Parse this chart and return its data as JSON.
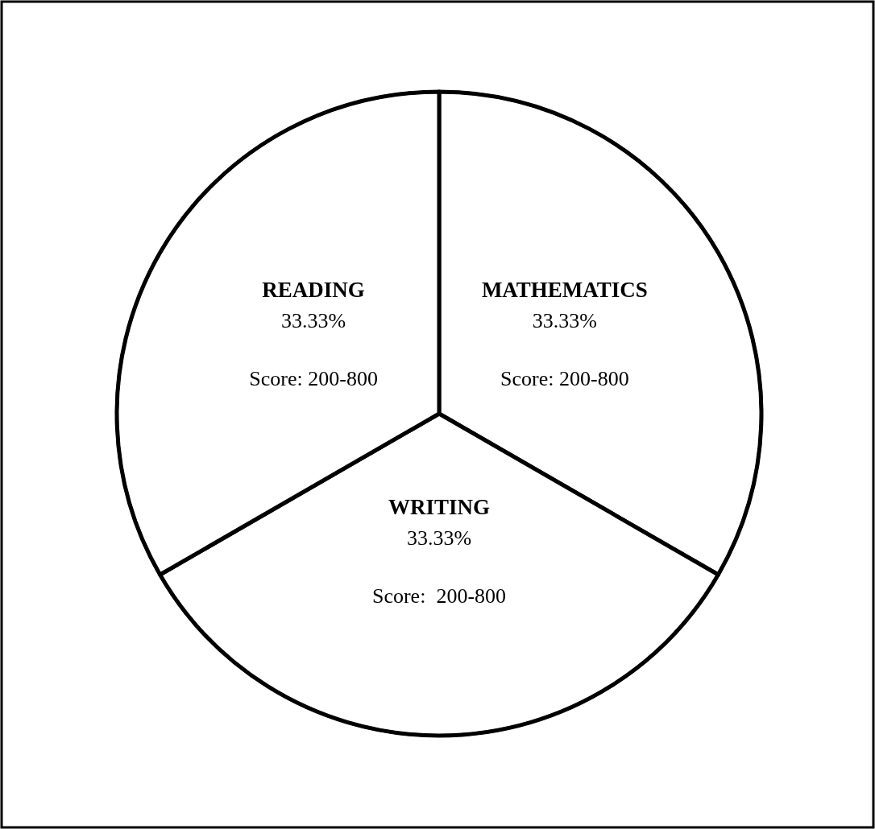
{
  "chart_data": {
    "type": "pie",
    "categories": [
      "MATHEMATICS",
      "WRITING",
      "READING"
    ],
    "values": [
      33.33,
      33.33,
      33.33
    ],
    "colors": [
      "#ffffff",
      "#ffffff",
      "#ffffff"
    ],
    "value_labels": [
      "33.33%",
      "33.33%",
      "33.33%"
    ],
    "annotations": [
      "Score: 200-800",
      "Score:  200-800",
      "Score: 200-800"
    ]
  }
}
